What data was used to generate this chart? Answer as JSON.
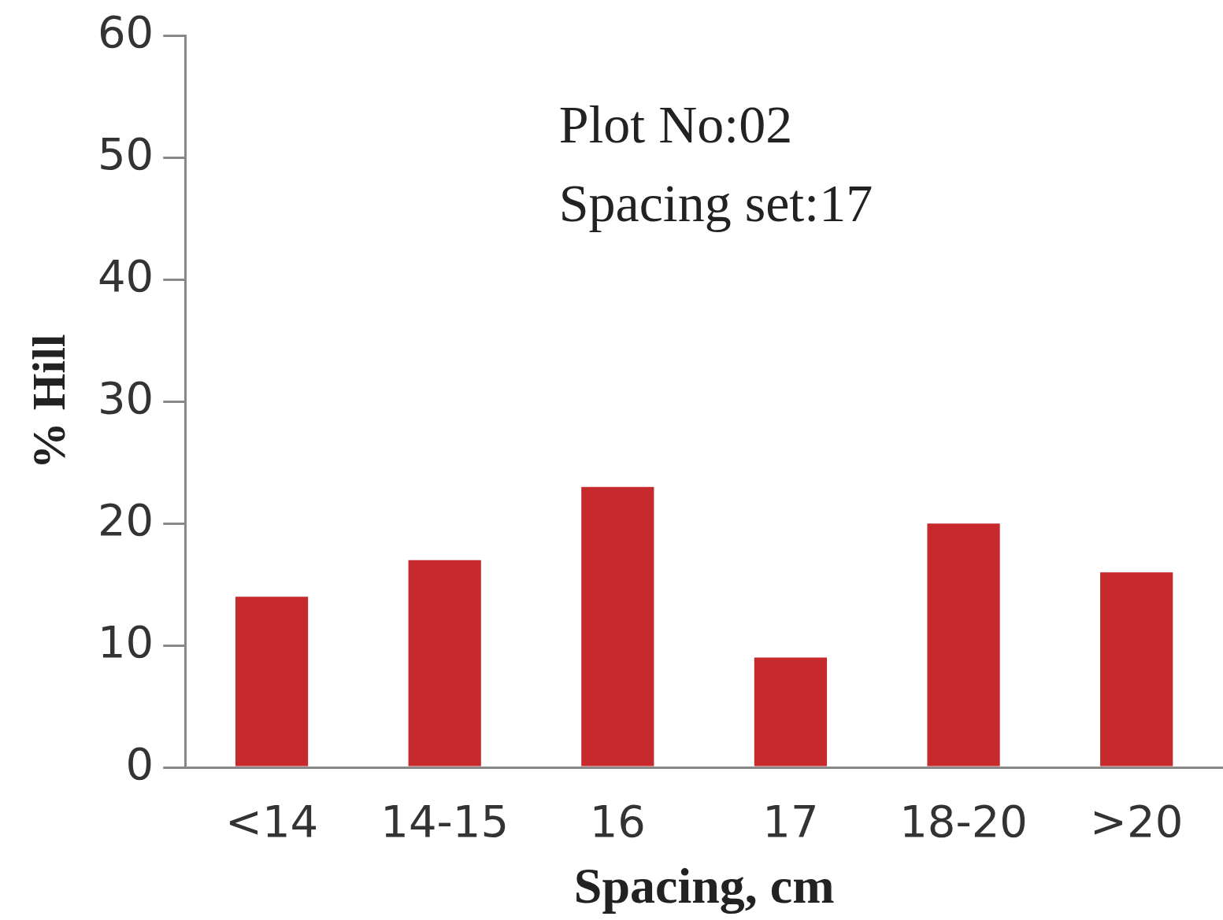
{
  "chart_data": {
    "type": "bar",
    "xlabel": "Spacing, cm",
    "ylabel": "% Hill",
    "categories": [
      "<14",
      "14-15",
      "16",
      "17",
      "18-20",
      ">20"
    ],
    "values": [
      14,
      17,
      23,
      9,
      20,
      16
    ],
    "color": "#c62a2c",
    "ylim": [
      0,
      60
    ],
    "yticks": [
      0,
      10,
      20,
      30,
      40,
      50,
      60
    ],
    "grid": false,
    "legend": false,
    "annotations": [
      "Plot No:02",
      "Spacing set:17"
    ]
  }
}
